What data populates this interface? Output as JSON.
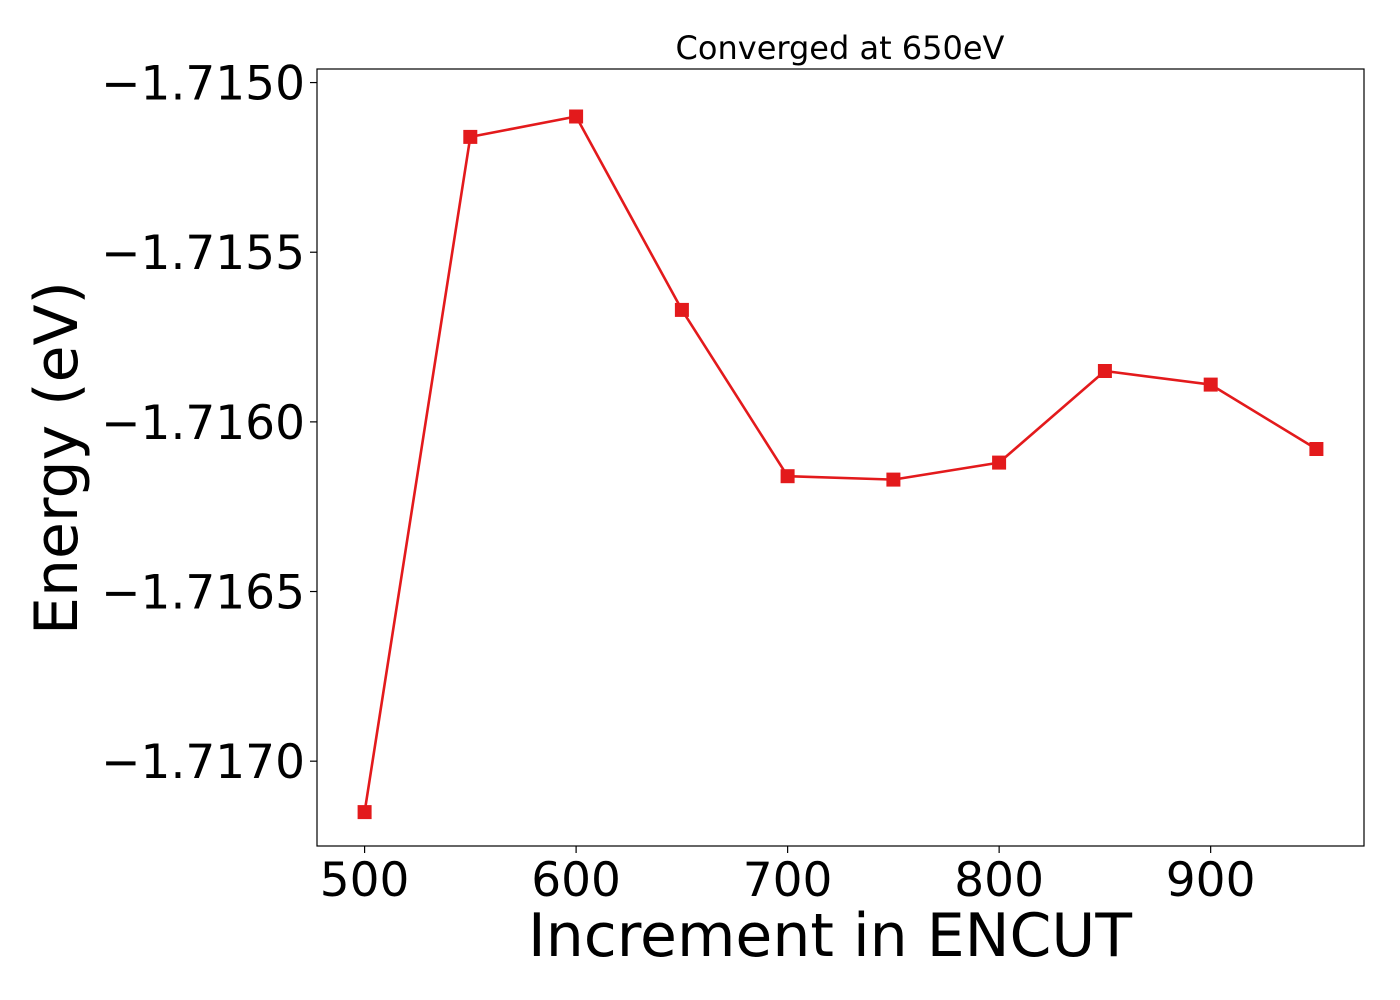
{
  "chart_data": {
    "type": "line",
    "title": "Converged at 650eV",
    "xlabel": "Increment in ENCUT",
    "ylabel": "Energy (eV)",
    "xlim": [
      477.5,
      972.5
    ],
    "ylim": [
      -1.71725,
      -1.71496
    ],
    "x_ticks": [
      500,
      600,
      700,
      800,
      900
    ],
    "x_tick_labels": [
      "500",
      "600",
      "700",
      "800",
      "900"
    ],
    "y_ticks": [
      -1.715,
      -1.7155,
      -1.716,
      -1.7165,
      -1.717
    ],
    "y_tick_labels": [
      "−1.7150",
      "−1.7155",
      "−1.7160",
      "−1.7165",
      "−1.7170"
    ],
    "grid": false,
    "series": [
      {
        "color": "#e31a1c",
        "marker": "square",
        "x": [
          500,
          550,
          600,
          650,
          700,
          750,
          800,
          850,
          900,
          950
        ],
        "y": [
          -1.71715,
          -1.71516,
          -1.7151,
          -1.71567,
          -1.71616,
          -1.71617,
          -1.71612,
          -1.71585,
          -1.71589,
          -1.71608
        ]
      }
    ]
  }
}
